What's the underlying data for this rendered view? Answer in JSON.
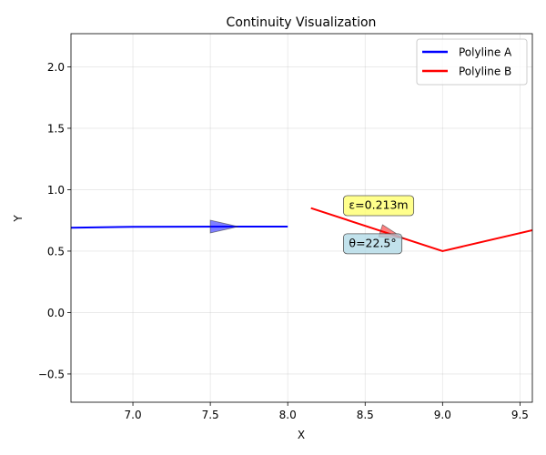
{
  "chart_data": {
    "type": "line",
    "title": "Continuity Visualization",
    "xlabel": "X",
    "ylabel": "Y",
    "xlim": [
      6.6,
      9.58
    ],
    "ylim": [
      -0.73,
      2.27
    ],
    "xticks": [
      7.0,
      7.5,
      8.0,
      8.5,
      9.0,
      9.5
    ],
    "yticks": [
      -0.5,
      0.0,
      0.5,
      1.0,
      1.5,
      2.0
    ],
    "grid": true,
    "legend_position": "top-right",
    "series": [
      {
        "name": "Polyline A",
        "color": "#0000ff",
        "x": [
          6.6,
          7.0,
          8.0
        ],
        "y": [
          0.69,
          0.698,
          0.7
        ]
      },
      {
        "name": "Polyline B",
        "color": "#ff0000",
        "x": [
          8.15,
          9.0,
          9.58
        ],
        "y": [
          0.85,
          0.5,
          0.67
        ]
      }
    ],
    "arrows": [
      {
        "name": "direction-arrow-a",
        "x": 7.5,
        "y": 0.7,
        "dx": 0.18,
        "dy": 0.0,
        "color": "#0000ff"
      },
      {
        "name": "direction-arrow-b",
        "x": 8.6,
        "y": 0.665,
        "dx": 0.15,
        "dy": -0.062,
        "color": "#ff0000"
      }
    ],
    "annotations": [
      {
        "name": "gap-annotation",
        "text": "ε=0.213m",
        "x": 8.36,
        "y": 0.87,
        "bg": "#ffff66"
      },
      {
        "name": "angle-annotation",
        "text": "θ=22.5°",
        "x": 8.36,
        "y": 0.56,
        "bg": "#add8e6"
      }
    ]
  }
}
